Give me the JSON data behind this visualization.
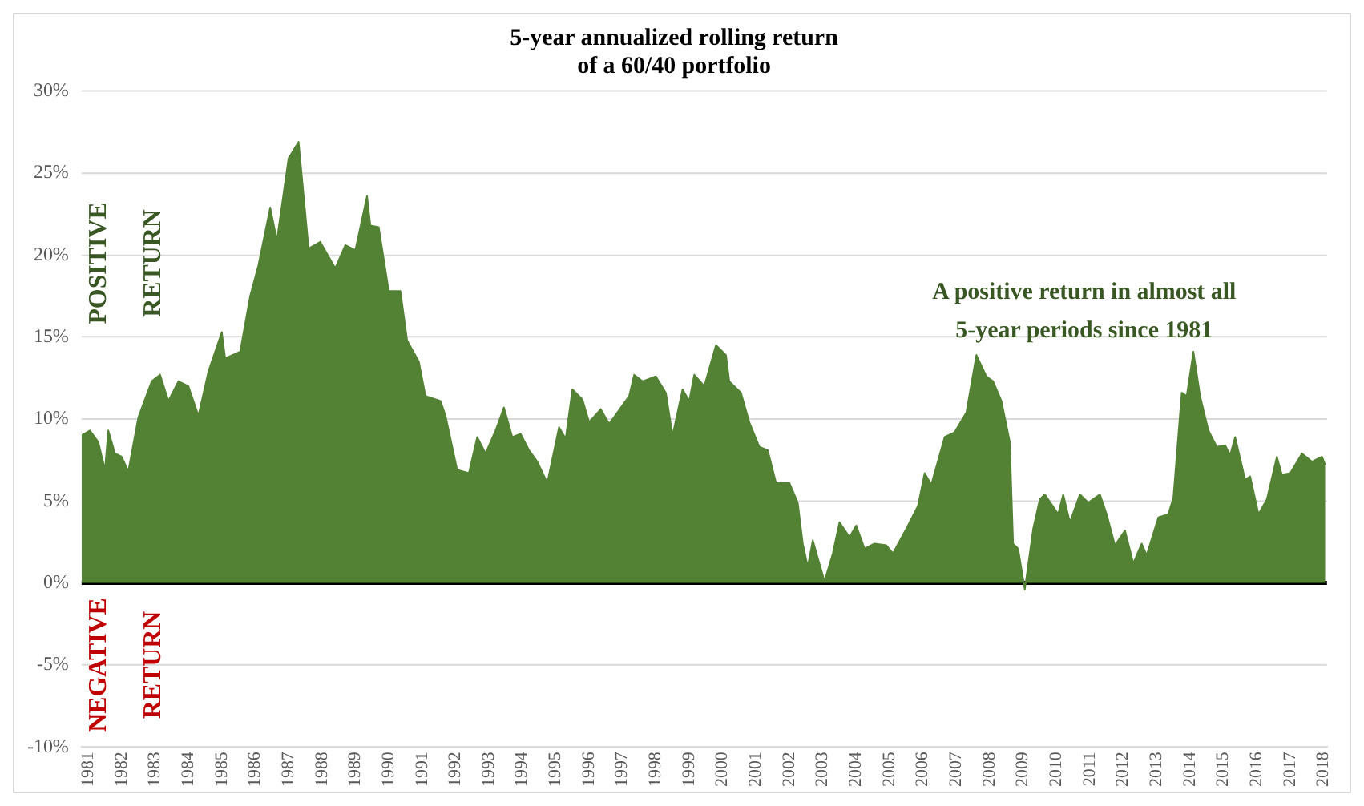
{
  "chart_data": {
    "type": "area",
    "title": "5-year annualized rolling return\nof a 60/40 portfolio",
    "annotations": [
      "POSITIVE\nRETURN",
      "NEGATIVE\nRETURN",
      "A positive return in almost all\n5-year periods since 1981"
    ],
    "x": [
      1980.8,
      1981.05,
      1981.3,
      1981.5,
      1981.6,
      1981.8,
      1982.0,
      1982.2,
      1982.5,
      1982.9,
      1983.15,
      1983.4,
      1983.7,
      1984.0,
      1984.3,
      1984.6,
      1985.0,
      1985.1,
      1985.55,
      1985.85,
      1986.1,
      1986.45,
      1986.65,
      1987.0,
      1987.3,
      1987.6,
      1987.95,
      1988.4,
      1988.7,
      1989.0,
      1989.35,
      1989.45,
      1989.7,
      1990.0,
      1990.35,
      1990.55,
      1990.9,
      1991.1,
      1991.55,
      1991.7,
      1992.05,
      1992.4,
      1992.65,
      1992.9,
      1993.2,
      1993.45,
      1993.7,
      1993.95,
      1994.2,
      1994.45,
      1994.75,
      1995.1,
      1995.3,
      1995.5,
      1995.8,
      1996.0,
      1996.35,
      1996.6,
      1997.2,
      1997.35,
      1997.6,
      1998.0,
      1998.3,
      1998.5,
      1998.8,
      1999.0,
      1999.15,
      1999.45,
      1999.8,
      2000.1,
      2000.2,
      2000.55,
      2000.8,
      2001.1,
      2001.35,
      2001.6,
      2002.0,
      2002.25,
      2002.4,
      2002.55,
      2002.7,
      2003.05,
      2003.3,
      2003.5,
      2003.8,
      2004.0,
      2004.25,
      2004.55,
      2004.9,
      2005.1,
      2005.5,
      2005.85,
      2006.05,
      2006.25,
      2006.65,
      2006.95,
      2007.3,
      2007.6,
      2007.9,
      2008.1,
      2008.35,
      2008.6,
      2008.7,
      2008.85,
      2009.05,
      2009.3,
      2009.5,
      2009.65,
      2010.05,
      2010.2,
      2010.4,
      2010.7,
      2010.95,
      2011.3,
      2011.5,
      2011.75,
      2012.05,
      2012.3,
      2012.55,
      2012.7,
      2013.05,
      2013.35,
      2013.5,
      2013.75,
      2013.9,
      2014.1,
      2014.3,
      2014.55,
      2014.8,
      2015.05,
      2015.2,
      2015.35,
      2015.65,
      2015.8,
      2016.05,
      2016.3,
      2016.6,
      2016.75,
      2017.0,
      2017.35,
      2017.65,
      2017.95,
      2018.05
    ],
    "series": [
      {
        "color": "#548235",
        "values": [
          9.0,
          9.3,
          8.6,
          6.9,
          9.3,
          7.9,
          7.7,
          6.8,
          10.1,
          12.3,
          12.7,
          11.1,
          12.3,
          12.0,
          10.2,
          12.9,
          15.3,
          13.7,
          14.1,
          17.5,
          19.4,
          22.9,
          20.9,
          25.9,
          26.9,
          20.4,
          20.8,
          19.2,
          20.6,
          20.3,
          23.6,
          21.8,
          21.7,
          17.8,
          17.8,
          14.8,
          13.5,
          11.4,
          11.1,
          10.2,
          6.9,
          6.7,
          8.9,
          7.9,
          9.3,
          10.7,
          8.9,
          9.1,
          8.1,
          7.4,
          6.1,
          9.5,
          8.8,
          11.8,
          11.2,
          9.8,
          10.6,
          9.7,
          11.4,
          12.7,
          12.3,
          12.6,
          11.6,
          9.0,
          11.8,
          11.1,
          12.7,
          12.0,
          14.5,
          13.9,
          12.3,
          11.6,
          9.8,
          8.3,
          8.1,
          6.1,
          6.1,
          4.9,
          2.4,
          1.0,
          2.6,
          0.1,
          1.8,
          3.7,
          2.8,
          3.5,
          2.1,
          2.4,
          2.3,
          1.8,
          3.3,
          4.7,
          6.7,
          6.0,
          8.9,
          9.2,
          10.4,
          13.9,
          12.6,
          12.3,
          11.1,
          8.6,
          2.4,
          2.1,
          -0.4,
          3.3,
          5.1,
          5.4,
          4.2,
          5.4,
          3.7,
          5.4,
          4.9,
          5.4,
          4.2,
          2.3,
          3.2,
          1.2,
          2.4,
          1.7,
          4.0,
          4.2,
          5.2,
          11.6,
          11.4,
          14.1,
          11.4,
          9.3,
          8.3,
          8.4,
          7.8,
          8.9,
          6.3,
          6.5,
          4.2,
          5.1,
          7.7,
          6.6,
          6.7,
          7.9,
          7.4,
          7.7,
          7.2
        ]
      }
    ],
    "xlim": [
      1980.8,
      2018.1
    ],
    "xticks": [
      1981,
      1982,
      1983,
      1984,
      1985,
      1986,
      1987,
      1988,
      1989,
      1990,
      1991,
      1992,
      1993,
      1994,
      1995,
      1996,
      1997,
      1998,
      1999,
      2000,
      2001,
      2002,
      2003,
      2004,
      2005,
      2006,
      2007,
      2008,
      2009,
      2010,
      2011,
      2012,
      2013,
      2014,
      2015,
      2016,
      2017,
      2018
    ],
    "ylim": [
      -10,
      30
    ],
    "yticks": [
      {
        "value": -10,
        "label": "-10%"
      },
      {
        "value": -5,
        "label": "-5%"
      },
      {
        "value": 0,
        "label": "0%"
      },
      {
        "value": 5,
        "label": "5%"
      },
      {
        "value": 10,
        "label": "10%"
      },
      {
        "value": 15,
        "label": "15%"
      },
      {
        "value": 20,
        "label": "20%"
      },
      {
        "value": 25,
        "label": "25%"
      },
      {
        "value": 30,
        "label": "30%"
      }
    ],
    "grid": "y",
    "marker": "none",
    "legend": false
  }
}
